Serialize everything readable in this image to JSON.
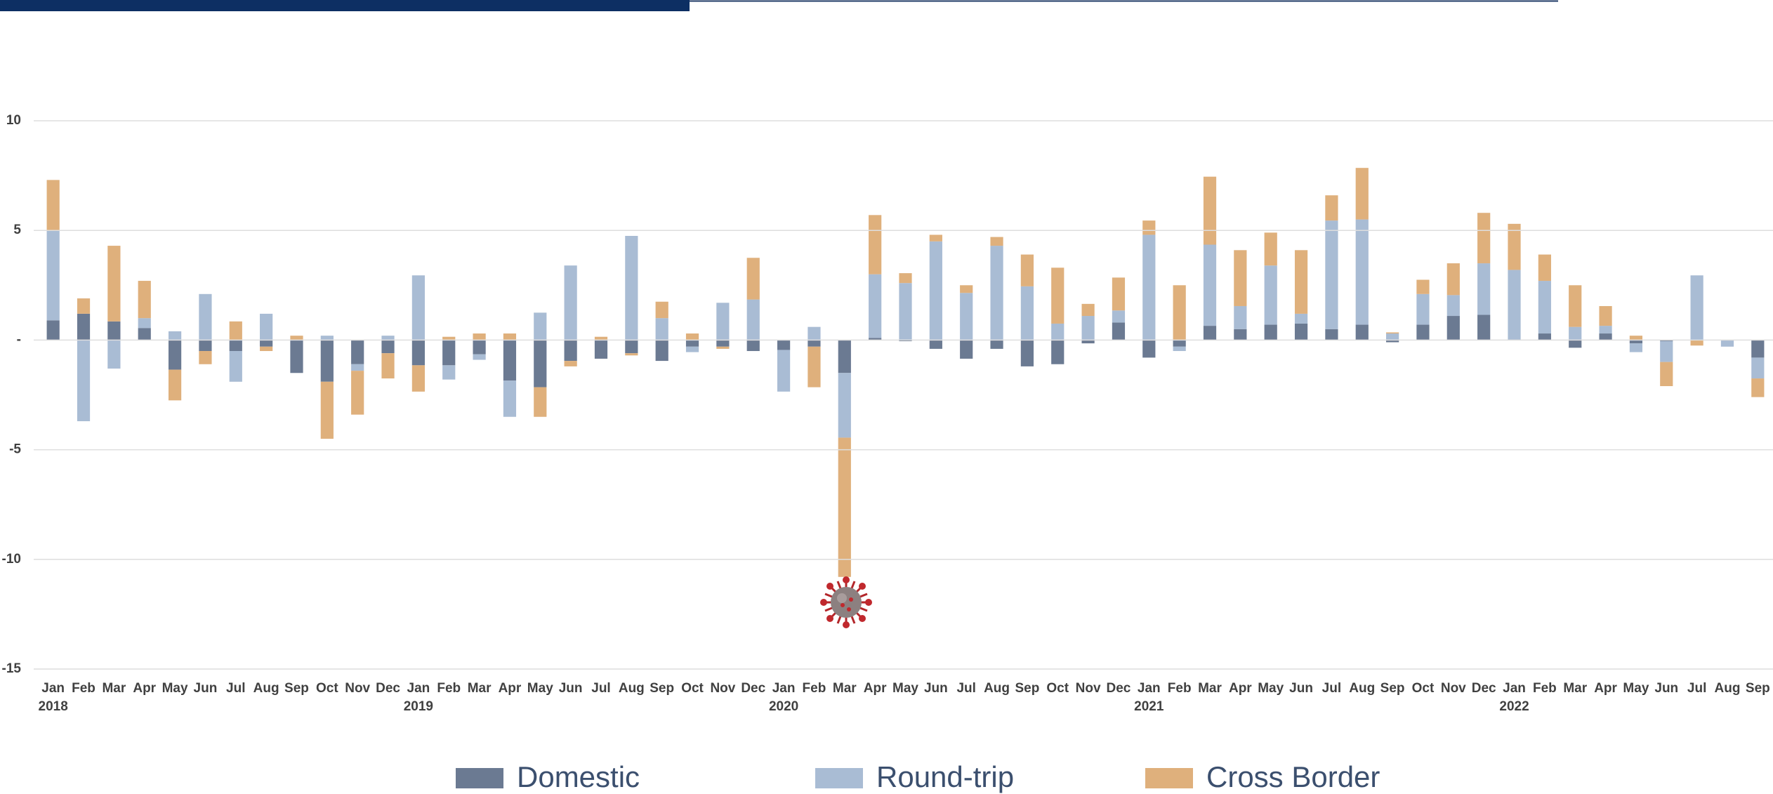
{
  "chart_data": {
    "type": "stacked_bar",
    "categories": [
      "Jan",
      "Feb",
      "Mar",
      "Apr",
      "May",
      "Jun",
      "Jul",
      "Aug",
      "Sep",
      "Oct",
      "Nov",
      "Dec",
      "Jan",
      "Feb",
      "Mar",
      "Apr",
      "May",
      "Jun",
      "Jul",
      "Aug",
      "Sep",
      "Oct",
      "Nov",
      "Dec",
      "Jan",
      "Feb",
      "Mar",
      "Apr",
      "May",
      "Jun",
      "Jul",
      "Aug",
      "Sep",
      "Oct",
      "Nov",
      "Dec",
      "Jan",
      "Feb",
      "Mar",
      "Apr",
      "May",
      "Jun",
      "Jul",
      "Aug",
      "Sep",
      "Oct",
      "Nov",
      "Dec",
      "Jan",
      "Feb",
      "Mar",
      "Apr",
      "May",
      "Jun",
      "Jul",
      "Aug",
      "Sep"
    ],
    "years": [
      "2018",
      null,
      null,
      null,
      null,
      null,
      null,
      null,
      null,
      null,
      null,
      null,
      "2019",
      null,
      null,
      null,
      null,
      null,
      null,
      null,
      null,
      null,
      null,
      null,
      "2020",
      null,
      null,
      null,
      null,
      null,
      null,
      null,
      null,
      null,
      null,
      null,
      "2021",
      null,
      null,
      null,
      null,
      null,
      null,
      null,
      null,
      null,
      null,
      null,
      "2022",
      null,
      null,
      null,
      null,
      null,
      null,
      null,
      null
    ],
    "series": [
      {
        "name": "Domestic",
        "color": "#6b7a92",
        "values": [
          0.9,
          1.2,
          0.85,
          0.55,
          -1.35,
          -0.5,
          -0.5,
          -0.3,
          -1.5,
          -1.9,
          -1.1,
          -0.6,
          -1.15,
          -1.15,
          -0.65,
          -1.85,
          -2.15,
          -0.95,
          -0.85,
          -0.6,
          -0.95,
          -0.3,
          -0.3,
          -0.5,
          -0.45,
          -0.3,
          -1.5,
          0.1,
          -0.05,
          -0.4,
          -0.85,
          -0.4,
          -1.2,
          -1.1,
          -0.15,
          0.8,
          -0.8,
          -0.3,
          0.65,
          0.5,
          0.7,
          0.75,
          0.5,
          0.7,
          -0.1,
          0.7,
          1.1,
          1.15,
          0,
          0.3,
          -0.35,
          0.3,
          -0.15,
          -0.05,
          0,
          0,
          -0.8
        ]
      },
      {
        "name": "Round-trip",
        "color": "#a9bcd4",
        "values": [
          4.1,
          -3.7,
          -1.3,
          0.45,
          0.4,
          2.1,
          -1.4,
          1.2,
          0,
          0.2,
          -0.3,
          0.2,
          2.95,
          -0.65,
          -0.25,
          -1.65,
          1.25,
          3.4,
          0,
          4.75,
          1.0,
          -0.25,
          1.7,
          1.85,
          -1.9,
          0.6,
          -2.95,
          2.9,
          2.6,
          4.5,
          2.15,
          4.3,
          2.45,
          0.75,
          1.1,
          0.55,
          4.8,
          -0.2,
          3.7,
          1.05,
          2.7,
          0.45,
          4.95,
          4.8,
          0.3,
          1.4,
          0.95,
          2.35,
          3.2,
          2.4,
          0.6,
          0.35,
          -0.4,
          -0.95,
          2.95,
          -0.3,
          -0.95
        ]
      },
      {
        "name": "Cross Border",
        "color": "#dfb07c",
        "values": [
          2.3,
          0.7,
          3.45,
          1.7,
          -1.4,
          -0.6,
          0.85,
          -0.2,
          0.2,
          -2.6,
          -2.0,
          -1.15,
          -1.2,
          0.15,
          0.3,
          0.3,
          -1.35,
          -0.25,
          0.15,
          -0.1,
          0.75,
          0.3,
          -0.1,
          1.9,
          0,
          -1.85,
          -6.35,
          2.7,
          0.45,
          0.3,
          0.35,
          0.4,
          1.45,
          2.55,
          0.55,
          1.5,
          0.65,
          2.5,
          3.1,
          2.55,
          1.5,
          2.9,
          1.15,
          2.35,
          0.05,
          0.65,
          1.45,
          2.3,
          2.1,
          1.2,
          1.9,
          0.9,
          0.2,
          -1.1,
          -0.25,
          0,
          -0.85
        ]
      }
    ],
    "ylim": [
      -15,
      10
    ],
    "yticks": [
      -15,
      -10,
      -5,
      {
        "value": 0,
        "label": "-"
      },
      5,
      10
    ],
    "grid": true,
    "legend": "bottom"
  }
}
